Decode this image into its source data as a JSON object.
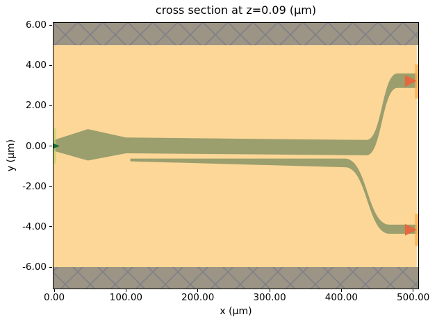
{
  "chart_data": {
    "type": "area",
    "title": "cross section at z=0.09 (μm)",
    "xlabel": "x (μm)",
    "ylabel": "y (μm)",
    "xlim": [
      -2,
      508
    ],
    "ylim": [
      -7.1,
      6.14
    ],
    "grid": false,
    "legend": false,
    "x_ticks": {
      "values": [
        0,
        100,
        200,
        300,
        400,
        500
      ],
      "labels": [
        "0.00",
        "100.00",
        "200.00",
        "300.00",
        "400.00",
        "500.00"
      ]
    },
    "y_ticks": {
      "values": [
        6,
        4,
        2,
        0,
        -2,
        -4,
        -6
      ],
      "labels": [
        "6.00",
        "4.00",
        "2.00",
        "0.00",
        "-2.00",
        "-4.00",
        "-6.00"
      ]
    },
    "colors": {
      "background": "#ffffff",
      "cladding": "#fcd797",
      "slab_fill": "#9c9484",
      "hatch_line": "#7f808a",
      "waveguide": "#9b9e6d",
      "source_plane": "#b9d467",
      "source_arrow": "#176d38",
      "monitor_plane": "#ffab40",
      "monitor_arrow": "#e5683f",
      "spine": "#000000"
    },
    "structures": {
      "cladding": {
        "x_span": [
          -2,
          505
        ],
        "y_span": [
          -6,
          5
        ]
      },
      "top_slab": {
        "x_span": [
          -2,
          508
        ],
        "y_span": [
          5,
          6.14
        ],
        "hatch": "x"
      },
      "bottom_slab": {
        "x_span": [
          -2,
          508
        ],
        "y_span": [
          -7.1,
          -6
        ],
        "hatch": "x"
      },
      "waveguides": [
        {
          "name": "upper-waveguide",
          "top_pts": [
            [
              0,
              0.3
            ],
            [
              47,
              0.84
            ],
            [
              100,
              0.42
            ],
            [
              435,
              0.3
            ]
          ],
          "bot_pts": [
            [
              0,
              -0.25
            ],
            [
              47,
              -0.72
            ],
            [
              100,
              -0.36
            ],
            [
              435,
              -0.46
            ]
          ],
          "bend_end_x": 478,
          "end_top_y": 3.6,
          "end_bot_y": 2.88,
          "end_x": 505
        },
        {
          "name": "lower-waveguide",
          "top_pts": [
            [
              106,
              -0.62
            ],
            [
              405,
              -0.62
            ]
          ],
          "bot_pts": [
            [
              106,
              -0.76
            ],
            [
              405,
              -1.05
            ]
          ],
          "bend_end_x": 467,
          "end_top_y": -3.9,
          "end_bot_y": -4.35,
          "end_x": 505
        }
      ],
      "source": {
        "x_span": [
          -2.5,
          2.8
        ],
        "y_span": [
          -0.87,
          0.87
        ],
        "opacity": 0.55,
        "arrow": {
          "x": 0,
          "y": 0,
          "direction": "right"
        }
      },
      "monitors": [
        {
          "name": "monitor-top",
          "x_span": [
            502.5,
            507
          ],
          "y_span": [
            2.35,
            4.05
          ],
          "arrow": {
            "x": 505,
            "y": 3.23,
            "direction": "right"
          }
        },
        {
          "name": "monitor-bottom",
          "x_span": [
            502.5,
            507
          ],
          "y_span": [
            -4.95,
            -3.35
          ],
          "arrow": {
            "x": 505,
            "y": -4.15,
            "direction": "right"
          }
        }
      ]
    }
  }
}
